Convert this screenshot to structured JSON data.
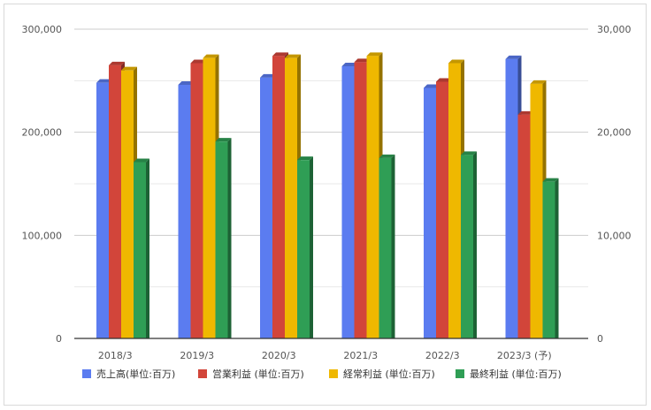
{
  "chart_data": {
    "type": "bar",
    "categories": [
      "2018/3",
      "2019/3",
      "2020/3",
      "2021/3",
      "2022/3",
      "2023/3 (予)"
    ],
    "series": [
      {
        "name": "売上高(単位:百万)",
        "axis": "left",
        "color": "#5b7cf0",
        "values": [
          248000,
          246000,
          253000,
          264000,
          243000,
          271000
        ]
      },
      {
        "name": "営業利益 (単位:百万)",
        "axis": "right",
        "color": "#d2453a",
        "values": [
          26500,
          26700,
          27400,
          26800,
          24900,
          21700
        ]
      },
      {
        "name": "経常利益 (単位:百万)",
        "axis": "right",
        "color": "#efb800",
        "values": [
          26000,
          27200,
          27200,
          27400,
          26700,
          24700
        ]
      },
      {
        "name": "最終利益 (単位:百万)",
        "axis": "right",
        "color": "#2f9e55",
        "values": [
          17100,
          19100,
          17300,
          17500,
          17800,
          15200
        ]
      }
    ],
    "y_left": {
      "range": [
        0,
        300000
      ],
      "ticks": [
        0,
        100000,
        200000,
        300000
      ],
      "tick_labels": [
        "0",
        "100,000",
        "200,000",
        "300,000"
      ]
    },
    "y_right": {
      "range": [
        0,
        30000
      ],
      "ticks": [
        0,
        10000,
        20000,
        30000
      ],
      "tick_labels": [
        "0",
        "10,000",
        "20,000",
        "30,000"
      ]
    },
    "grid": true,
    "legend_position": "bottom",
    "style": "3d-bar"
  }
}
